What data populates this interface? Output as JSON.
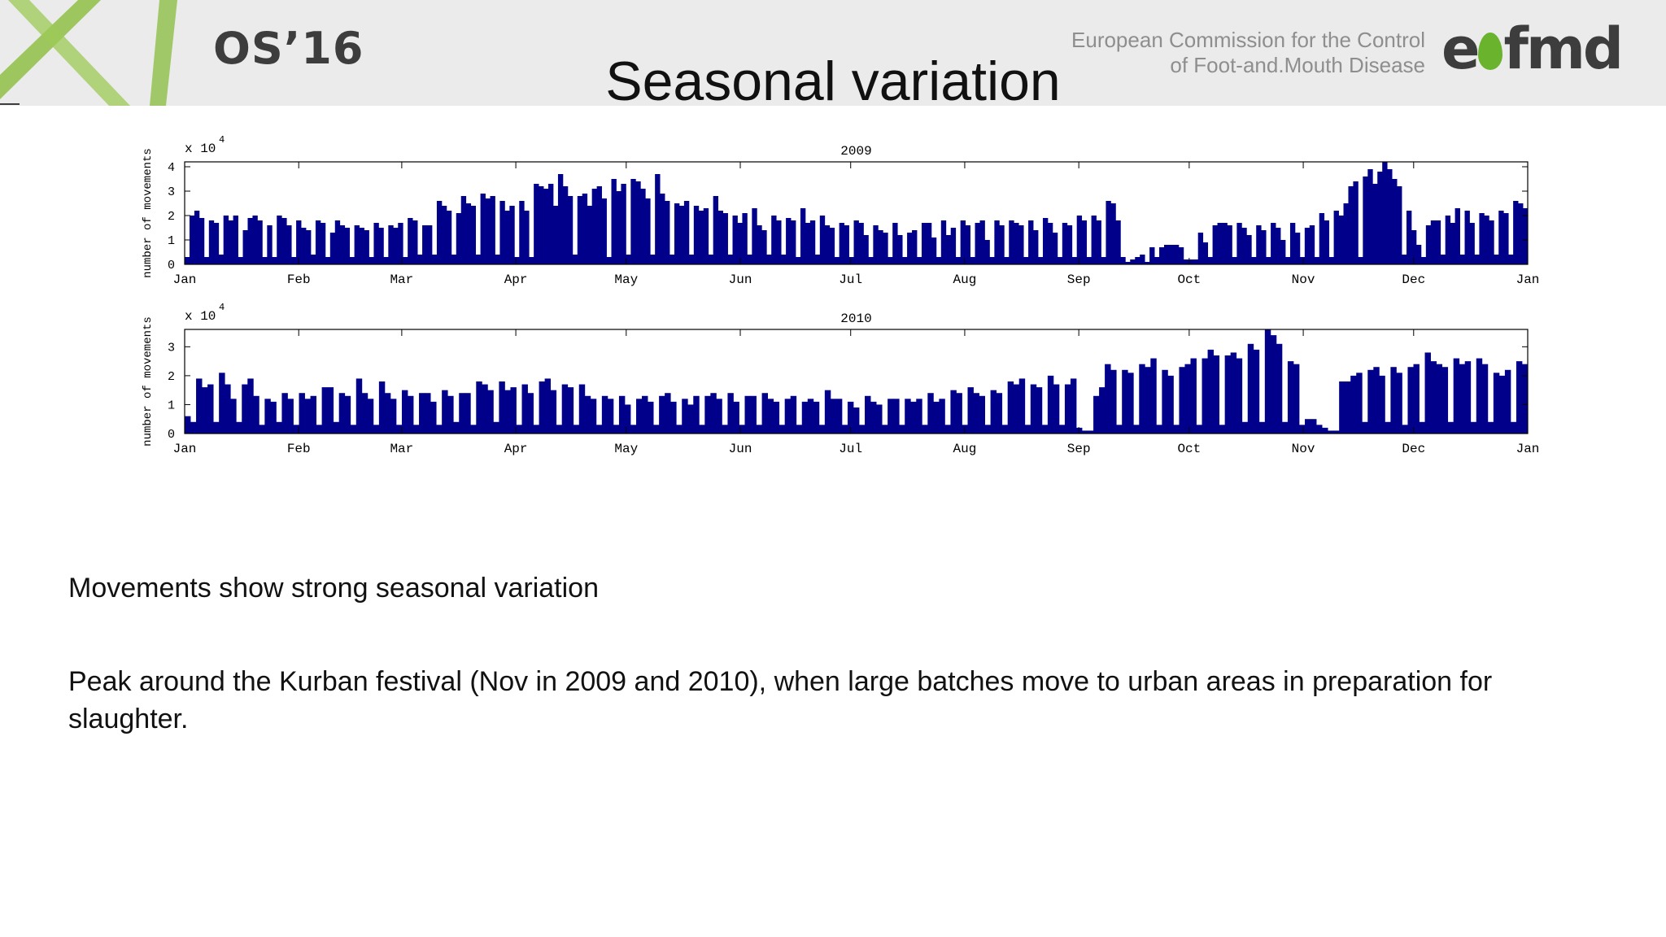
{
  "header": {
    "conference": "OS’16",
    "commission_line1": "European Commission for the Control",
    "commission_line2": "of Foot-and.Mouth Disease",
    "brand_left": "e",
    "brand_right": "fmd"
  },
  "slide": {
    "title": "Seasonal variation"
  },
  "colors": {
    "bar": "#00008b",
    "header_bg": "#ebebeb",
    "leaf": "#6ab32d"
  },
  "chart_data": [
    {
      "type": "bar",
      "title": "2009",
      "ylabel": "number of movements",
      "yscale_label": "x 10",
      "yscale_exp": "4",
      "ylim": [
        0,
        4.2
      ],
      "yticks": [
        0,
        1,
        2,
        3,
        4
      ],
      "month_labels": [
        "Jan",
        "Feb",
        "Mar",
        "Apr",
        "May",
        "Jun",
        "Jul",
        "Aug",
        "Sep",
        "Oct",
        "Nov",
        "Dec",
        "Jan"
      ],
      "month_positions": [
        0,
        31,
        59,
        90,
        120,
        151,
        181,
        212,
        243,
        273,
        304,
        334,
        365
      ],
      "values": [
        0.3,
        2.0,
        2.2,
        1.9,
        0.3,
        1.8,
        1.7,
        0.4,
        2.0,
        1.8,
        2.0,
        0.3,
        1.4,
        1.9,
        2.0,
        1.8,
        0.3,
        1.6,
        0.3,
        2.0,
        1.9,
        1.6,
        0.3,
        1.8,
        1.5,
        1.4,
        0.4,
        1.8,
        1.7,
        0.3,
        1.3,
        1.8,
        1.6,
        1.5,
        0.3,
        1.6,
        1.5,
        1.4,
        0.3,
        1.7,
        1.5,
        0.3,
        1.6,
        1.5,
        1.7,
        0.3,
        1.9,
        1.8,
        0.4,
        1.6,
        1.6,
        0.4,
        2.6,
        2.4,
        2.2,
        0.4,
        2.1,
        2.8,
        2.5,
        2.4,
        0.4,
        2.9,
        2.7,
        2.8,
        0.4,
        2.6,
        2.2,
        2.4,
        0.3,
        2.6,
        2.2,
        0.3,
        3.3,
        3.2,
        3.1,
        3.3,
        2.4,
        3.7,
        3.2,
        2.8,
        0.4,
        2.8,
        2.9,
        2.4,
        3.1,
        3.2,
        2.7,
        0.3,
        3.5,
        3.0,
        3.3,
        0.4,
        3.5,
        3.4,
        3.1,
        2.7,
        0.4,
        3.7,
        2.9,
        2.6,
        0.4,
        2.5,
        2.4,
        2.6,
        0.4,
        2.4,
        2.2,
        2.3,
        0.4,
        2.8,
        2.2,
        2.1,
        0.4,
        2.0,
        1.7,
        2.1,
        0.4,
        2.3,
        1.6,
        1.4,
        0.4,
        2.0,
        1.8,
        0.4,
        1.9,
        1.8,
        0.3,
        2.3,
        1.7,
        1.8,
        0.4,
        2.0,
        1.6,
        1.5,
        0.3,
        1.7,
        1.6,
        0.3,
        1.8,
        1.7,
        1.2,
        0.3,
        1.6,
        1.4,
        1.3,
        0.3,
        1.7,
        1.2,
        0.3,
        1.3,
        1.4,
        0.3,
        1.7,
        1.7,
        1.1,
        0.3,
        1.8,
        1.2,
        1.5,
        0.3,
        1.8,
        1.6,
        0.3,
        1.7,
        1.8,
        1.0,
        0.3,
        1.8,
        1.6,
        0.3,
        1.8,
        1.7,
        1.6,
        0.3,
        1.8,
        1.4,
        0.3,
        1.9,
        1.7,
        1.3,
        0.3,
        1.7,
        1.6,
        0.3,
        2.0,
        1.8,
        0.3,
        2.0,
        1.8,
        0.3,
        2.6,
        2.5,
        1.8,
        0.3,
        0.1,
        0.2,
        0.3,
        0.4,
        0.1,
        0.7,
        0.3,
        0.7,
        0.8,
        0.8,
        0.8,
        0.7,
        0.2,
        0.2,
        0.2,
        1.3,
        0.9,
        0.3,
        1.6,
        1.7,
        1.7,
        1.6,
        0.3,
        1.7,
        1.5,
        1.2,
        0.3,
        1.6,
        1.4,
        0.3,
        1.7,
        1.5,
        1.0,
        0.3,
        1.7,
        1.3,
        0.3,
        1.5,
        1.6,
        0.3,
        2.1,
        1.8,
        0.3,
        2.2,
        2.0,
        2.5,
        3.2,
        3.4,
        0.3,
        3.6,
        3.9,
        3.3,
        3.8,
        4.3,
        3.9,
        3.5,
        3.2,
        0.4,
        2.2,
        1.4,
        0.8,
        0.3,
        1.6,
        1.8,
        1.8,
        0.4,
        2.0,
        1.7,
        2.3,
        0.4,
        2.2,
        1.7,
        0.4,
        2.1,
        2.0,
        1.8,
        0.4,
        2.2,
        2.1,
        0.4,
        2.6,
        2.5,
        2.3
      ]
    },
    {
      "type": "bar",
      "title": "2010",
      "ylabel": "number of movements",
      "yscale_label": "x 10",
      "yscale_exp": "4",
      "ylim": [
        0,
        3.6
      ],
      "yticks": [
        0,
        1,
        2,
        3
      ],
      "month_labels": [
        "Jan",
        "Feb",
        "Mar",
        "Apr",
        "May",
        "Jun",
        "Jul",
        "Aug",
        "Sep",
        "Oct",
        "Nov",
        "Dec",
        "Jan"
      ],
      "month_positions": [
        0,
        31,
        59,
        90,
        120,
        151,
        181,
        212,
        243,
        273,
        304,
        334,
        365
      ],
      "values": [
        0.6,
        0.4,
        1.9,
        1.6,
        1.7,
        0.4,
        2.1,
        1.7,
        1.2,
        0.4,
        1.7,
        1.9,
        1.3,
        0.3,
        1.2,
        1.1,
        0.4,
        1.4,
        1.2,
        0.3,
        1.4,
        1.2,
        1.3,
        0.3,
        1.6,
        1.6,
        0.4,
        1.4,
        1.3,
        0.3,
        1.9,
        1.4,
        1.2,
        0.3,
        1.8,
        1.4,
        1.2,
        0.3,
        1.5,
        1.3,
        0.3,
        1.4,
        1.4,
        1.1,
        0.3,
        1.5,
        1.3,
        0.4,
        1.4,
        1.4,
        0.3,
        1.8,
        1.7,
        1.5,
        0.4,
        1.8,
        1.5,
        1.6,
        0.3,
        1.7,
        1.4,
        0.3,
        1.8,
        1.9,
        1.5,
        0.3,
        1.7,
        1.6,
        0.3,
        1.7,
        1.3,
        1.2,
        0.3,
        1.3,
        1.2,
        0.3,
        1.3,
        1.0,
        0.3,
        1.2,
        1.3,
        1.1,
        0.3,
        1.3,
        1.4,
        1.1,
        0.3,
        1.2,
        1.0,
        1.3,
        0.3,
        1.3,
        1.4,
        1.2,
        0.3,
        1.4,
        1.1,
        0.3,
        1.3,
        1.3,
        0.3,
        1.4,
        1.2,
        1.1,
        0.3,
        1.2,
        1.3,
        0.3,
        1.1,
        1.2,
        1.1,
        0.3,
        1.5,
        1.2,
        1.2,
        0.3,
        1.1,
        0.9,
        0.3,
        1.3,
        1.1,
        1.0,
        0.3,
        1.2,
        1.2,
        0.3,
        1.2,
        1.1,
        1.2,
        0.3,
        1.4,
        1.1,
        1.2,
        0.3,
        1.5,
        1.4,
        0.3,
        1.6,
        1.4,
        1.3,
        0.3,
        1.5,
        1.4,
        0.3,
        1.8,
        1.7,
        1.9,
        0.3,
        1.7,
        1.6,
        0.3,
        2.0,
        1.7,
        0.3,
        1.7,
        1.9,
        0.2,
        0.1,
        0.1,
        1.3,
        1.6,
        2.4,
        2.2,
        0.3,
        2.2,
        2.1,
        0.3,
        2.4,
        2.3,
        2.6,
        0.3,
        2.2,
        2.0,
        0.3,
        2.3,
        2.4,
        2.6,
        0.3,
        2.6,
        2.9,
        2.7,
        0.3,
        2.7,
        2.8,
        2.6,
        0.4,
        3.1,
        2.9,
        0.4,
        3.6,
        3.4,
        3.1,
        0.4,
        2.5,
        2.4,
        0.3,
        0.5,
        0.5,
        0.3,
        0.2,
        0.1,
        0.1,
        1.8,
        1.8,
        2.0,
        2.1,
        0.4,
        2.2,
        2.3,
        2.0,
        0.4,
        2.3,
        2.1,
        0.3,
        2.3,
        2.4,
        0.4,
        2.8,
        2.5,
        2.4,
        2.3,
        0.4,
        2.6,
        2.4,
        2.5,
        0.4,
        2.6,
        2.4,
        0.4,
        2.1,
        2.0,
        2.2,
        0.4,
        2.5,
        2.4
      ]
    }
  ],
  "text": {
    "line1": "Movements show strong seasonal variation",
    "line2": "Peak around the Kurban festival (Nov in 2009 and 2010), when large batches move to urban areas in preparation for slaughter."
  }
}
